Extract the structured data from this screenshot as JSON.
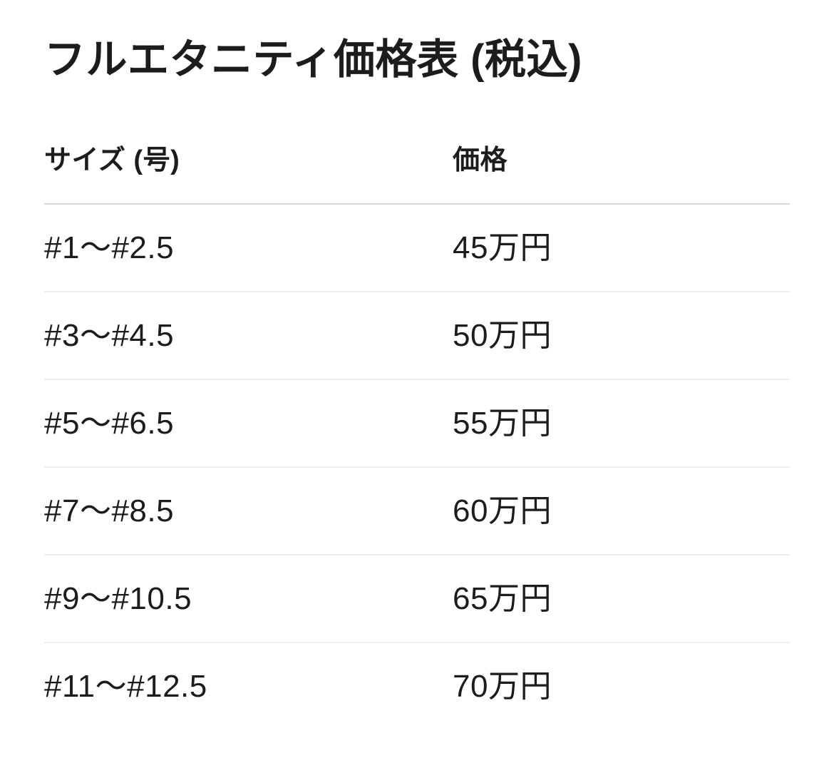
{
  "page": {
    "title": "フルエタニティ価格表 (税込)"
  },
  "price_table": {
    "columns": {
      "size": "サイズ (号)",
      "price": "価格"
    },
    "rows": [
      {
        "size": "#1〜#2.5",
        "price": "45万円"
      },
      {
        "size": "#3〜#4.5",
        "price": "50万円"
      },
      {
        "size": "#5〜#6.5",
        "price": "55万円"
      },
      {
        "size": "#7〜#8.5",
        "price": "60万円"
      },
      {
        "size": "#9〜#10.5",
        "price": "65万円"
      },
      {
        "size": "#11〜#12.5",
        "price": "70万円"
      }
    ]
  },
  "colors": {
    "background": "#ffffff",
    "text": "#1c1c1e",
    "header_divider": "#d8d8d8",
    "row_divider": "#ededed"
  }
}
